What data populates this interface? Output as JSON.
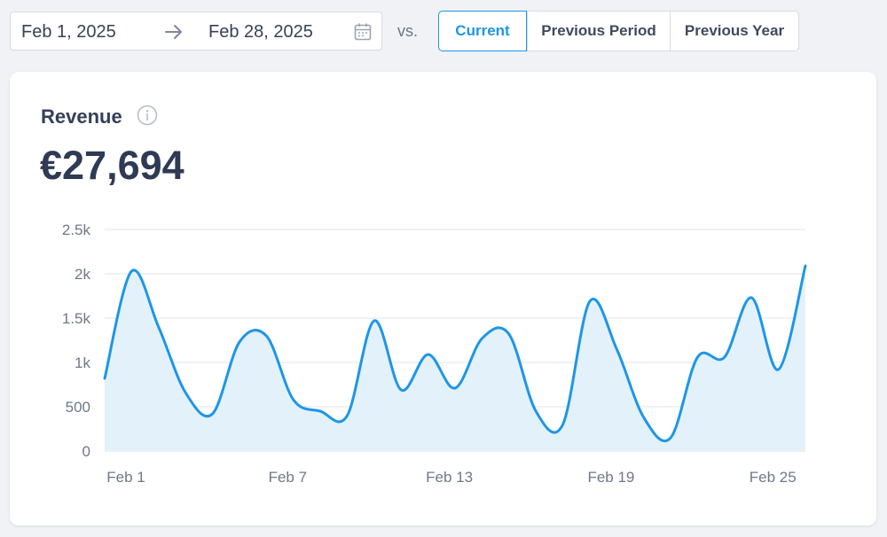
{
  "date_range": {
    "start": "Feb 1, 2025",
    "end": "Feb 28, 2025"
  },
  "compare": {
    "vs_label": "vs.",
    "options": [
      "Current",
      "Previous Period",
      "Previous Year"
    ],
    "selected": "Current"
  },
  "card": {
    "title": "Revenue",
    "value": "€27,694"
  },
  "colors": {
    "accent": "#1e96e6",
    "area_fill": "#e3f1fb",
    "grid": "#dfe3ea"
  },
  "chart_data": {
    "type": "area",
    "x": [
      "Feb 1",
      "Feb 2",
      "Feb 3",
      "Feb 4",
      "Feb 5",
      "Feb 6",
      "Feb 7",
      "Feb 8",
      "Feb 9",
      "Feb 10",
      "Feb 11",
      "Feb 12",
      "Feb 13",
      "Feb 14",
      "Feb 15",
      "Feb 16",
      "Feb 17",
      "Feb 18",
      "Feb 19",
      "Feb 20",
      "Feb 21",
      "Feb 22",
      "Feb 23",
      "Feb 24",
      "Feb 25",
      "Feb 26",
      "Feb 27"
    ],
    "series": [
      {
        "values": [
          820,
          2030,
          1400,
          660,
          420,
          1230,
          1300,
          580,
          450,
          400,
          1470,
          690,
          1090,
          710,
          1270,
          1320,
          450,
          300,
          1690,
          1150,
          380,
          150,
          1060,
          1060,
          1730,
          920,
          2090
        ]
      }
    ],
    "x_ticks": [
      "Feb 1",
      "Feb 7",
      "Feb 13",
      "Feb 19",
      "Feb 25"
    ],
    "y_ticks": [
      "0",
      "500",
      "1k",
      "1.5k",
      "2k",
      "2.5k"
    ],
    "ylim": [
      0,
      2500
    ],
    "grid": true
  }
}
